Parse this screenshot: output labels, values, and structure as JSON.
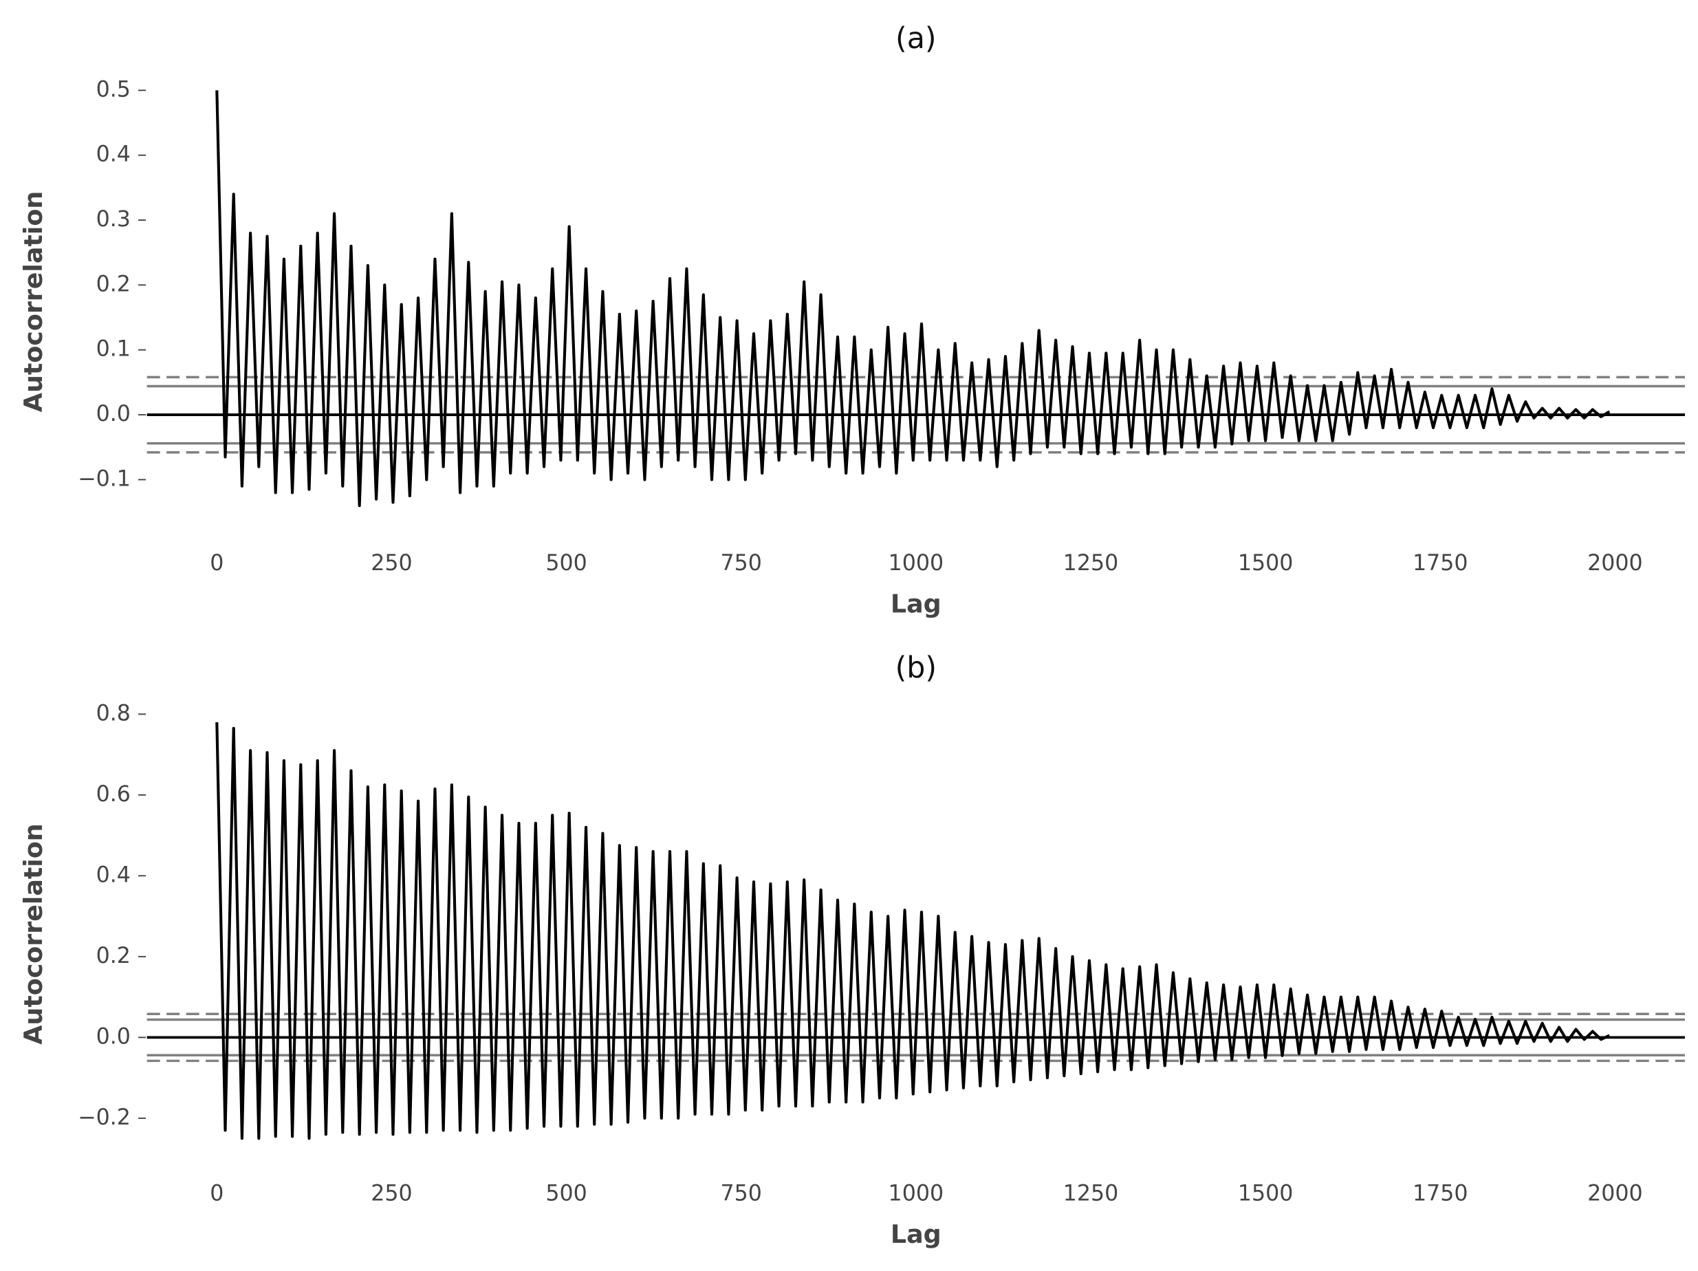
{
  "chart_data": [
    {
      "type": "line",
      "title": "(a)",
      "xlabel": "Lag",
      "ylabel": "Autocorrelation",
      "color": "#000000",
      "xlim": [
        -100,
        2100
      ],
      "ylim": [
        -0.15,
        0.52
      ],
      "xticks": [
        0,
        250,
        500,
        750,
        1000,
        1250,
        1500,
        1750,
        2000
      ],
      "yticks": [
        {
          "value": -0.1,
          "label": "−0.1"
        },
        {
          "value": 0,
          "label": "0.0"
        },
        0.1,
        0.2,
        0.3,
        0.4,
        0.5
      ],
      "reference_lines": [
        {
          "value": 0.058,
          "style": "dashed",
          "color": "#808080"
        },
        {
          "value": 0.044,
          "style": "solid",
          "color": "#808080"
        },
        {
          "value": 0,
          "style": "solid",
          "color": "#000000"
        },
        {
          "value": -0.044,
          "style": "solid",
          "color": "#808080"
        },
        {
          "value": -0.058,
          "style": "dashed",
          "color": "#808080"
        }
      ],
      "x": [
        0,
        12,
        24,
        36,
        48,
        60,
        72,
        84,
        96,
        108,
        120,
        132,
        144,
        156,
        168,
        180,
        192,
        204,
        216,
        228,
        240,
        252,
        264,
        276,
        288,
        300,
        312,
        324,
        336,
        348,
        360,
        372,
        384,
        396,
        408,
        420,
        432,
        444,
        456,
        468,
        480,
        492,
        504,
        516,
        528,
        540,
        552,
        564,
        576,
        588,
        600,
        612,
        624,
        636,
        648,
        660,
        672,
        684,
        696,
        708,
        720,
        732,
        744,
        756,
        768,
        780,
        792,
        804,
        816,
        828,
        840,
        852,
        864,
        876,
        888,
        900,
        912,
        924,
        936,
        948,
        960,
        972,
        984,
        996,
        1008,
        1020,
        1032,
        1044,
        1056,
        1068,
        1080,
        1092,
        1104,
        1116,
        1128,
        1140,
        1152,
        1164,
        1176,
        1188,
        1200,
        1212,
        1224,
        1236,
        1248,
        1260,
        1272,
        1284,
        1296,
        1308,
        1320,
        1332,
        1344,
        1356,
        1368,
        1380,
        1392,
        1404,
        1416,
        1428,
        1440,
        1452,
        1464,
        1476,
        1488,
        1500,
        1512,
        1524,
        1536,
        1548,
        1560,
        1572,
        1584,
        1596,
        1608,
        1620,
        1632,
        1644,
        1656,
        1668,
        1680,
        1692,
        1704,
        1716,
        1728,
        1740,
        1752,
        1764,
        1776,
        1788,
        1800,
        1812,
        1824,
        1836,
        1848,
        1860,
        1872,
        1884,
        1896,
        1908,
        1920,
        1932,
        1944,
        1956,
        1968,
        1980,
        1992
      ],
      "values": [
        0.5,
        -0.065,
        0.34,
        -0.11,
        0.28,
        -0.08,
        0.275,
        -0.12,
        0.24,
        -0.12,
        0.26,
        -0.115,
        0.28,
        -0.09,
        0.31,
        -0.11,
        0.26,
        -0.14,
        0.23,
        -0.13,
        0.2,
        -0.135,
        0.17,
        -0.125,
        0.18,
        -0.1,
        0.24,
        -0.08,
        0.31,
        -0.12,
        0.235,
        -0.11,
        0.19,
        -0.11,
        0.205,
        -0.09,
        0.2,
        -0.09,
        0.18,
        -0.08,
        0.225,
        -0.07,
        0.29,
        -0.07,
        0.225,
        -0.09,
        0.19,
        -0.1,
        0.155,
        -0.09,
        0.16,
        -0.1,
        0.175,
        -0.08,
        0.21,
        -0.07,
        0.225,
        -0.08,
        0.185,
        -0.1,
        0.15,
        -0.1,
        0.145,
        -0.1,
        0.125,
        -0.09,
        0.145,
        -0.07,
        0.155,
        -0.06,
        0.205,
        -0.07,
        0.185,
        -0.08,
        0.12,
        -0.09,
        0.12,
        -0.09,
        0.1,
        -0.08,
        0.135,
        -0.09,
        0.125,
        -0.07,
        0.14,
        -0.07,
        0.1,
        -0.07,
        0.11,
        -0.07,
        0.08,
        -0.07,
        0.085,
        -0.08,
        0.09,
        -0.07,
        0.11,
        -0.06,
        0.13,
        -0.05,
        0.115,
        -0.05,
        0.105,
        -0.06,
        0.095,
        -0.06,
        0.095,
        -0.06,
        0.095,
        -0.05,
        0.115,
        -0.06,
        0.1,
        -0.06,
        0.1,
        -0.05,
        0.085,
        -0.05,
        0.06,
        -0.05,
        0.075,
        -0.045,
        0.08,
        -0.04,
        0.075,
        -0.04,
        0.08,
        -0.035,
        0.06,
        -0.04,
        0.045,
        -0.04,
        0.045,
        -0.04,
        0.05,
        -0.03,
        0.065,
        -0.02,
        0.06,
        -0.02,
        0.07,
        -0.02,
        0.05,
        -0.02,
        0.035,
        -0.02,
        0.03,
        -0.02,
        0.03,
        -0.02,
        0.03,
        -0.02,
        0.04,
        -0.015,
        0.03,
        -0.01,
        0.02,
        -0.005,
        0.01,
        -0.005,
        0.01,
        -0.005,
        0.008,
        -0.005,
        0.008,
        -0.003,
        0.005
      ]
    },
    {
      "type": "line",
      "title": "(b)",
      "xlabel": "Lag",
      "ylabel": "Autocorrelation",
      "color": "#000000",
      "xlim": [
        -100,
        2100
      ],
      "ylim": [
        -0.26,
        0.82
      ],
      "xticks": [
        0,
        250,
        500,
        750,
        1000,
        1250,
        1500,
        1750,
        2000
      ],
      "yticks": [
        {
          "value": -0.2,
          "label": "−0.2"
        },
        {
          "value": 0,
          "label": "0.0"
        },
        0.2,
        0.4,
        0.6,
        0.8
      ],
      "reference_lines": [
        {
          "value": 0.058,
          "style": "dashed",
          "color": "#808080"
        },
        {
          "value": 0.044,
          "style": "solid",
          "color": "#808080"
        },
        {
          "value": 0,
          "style": "solid",
          "color": "#000000"
        },
        {
          "value": -0.044,
          "style": "solid",
          "color": "#808080"
        },
        {
          "value": -0.058,
          "style": "dashed",
          "color": "#808080"
        }
      ],
      "x": [
        0,
        12,
        24,
        36,
        48,
        60,
        72,
        84,
        96,
        108,
        120,
        132,
        144,
        156,
        168,
        180,
        192,
        204,
        216,
        228,
        240,
        252,
        264,
        276,
        288,
        300,
        312,
        324,
        336,
        348,
        360,
        372,
        384,
        396,
        408,
        420,
        432,
        444,
        456,
        468,
        480,
        492,
        504,
        516,
        528,
        540,
        552,
        564,
        576,
        588,
        600,
        612,
        624,
        636,
        648,
        660,
        672,
        684,
        696,
        708,
        720,
        732,
        744,
        756,
        768,
        780,
        792,
        804,
        816,
        828,
        840,
        852,
        864,
        876,
        888,
        900,
        912,
        924,
        936,
        948,
        960,
        972,
        984,
        996,
        1008,
        1020,
        1032,
        1044,
        1056,
        1068,
        1080,
        1092,
        1104,
        1116,
        1128,
        1140,
        1152,
        1164,
        1176,
        1188,
        1200,
        1212,
        1224,
        1236,
        1248,
        1260,
        1272,
        1284,
        1296,
        1308,
        1320,
        1332,
        1344,
        1356,
        1368,
        1380,
        1392,
        1404,
        1416,
        1428,
        1440,
        1452,
        1464,
        1476,
        1488,
        1500,
        1512,
        1524,
        1536,
        1548,
        1560,
        1572,
        1584,
        1596,
        1608,
        1620,
        1632,
        1644,
        1656,
        1668,
        1680,
        1692,
        1704,
        1716,
        1728,
        1740,
        1752,
        1764,
        1776,
        1788,
        1800,
        1812,
        1824,
        1836,
        1848,
        1860,
        1872,
        1884,
        1896,
        1908,
        1920,
        1932,
        1944,
        1956,
        1968,
        1980,
        1992
      ],
      "values": [
        0.78,
        -0.23,
        0.765,
        -0.25,
        0.71,
        -0.25,
        0.705,
        -0.245,
        0.685,
        -0.245,
        0.675,
        -0.25,
        0.685,
        -0.24,
        0.71,
        -0.235,
        0.66,
        -0.24,
        0.62,
        -0.235,
        0.625,
        -0.24,
        0.61,
        -0.235,
        0.585,
        -0.235,
        0.615,
        -0.23,
        0.625,
        -0.23,
        0.595,
        -0.235,
        0.57,
        -0.23,
        0.55,
        -0.23,
        0.53,
        -0.225,
        0.53,
        -0.22,
        0.55,
        -0.22,
        0.555,
        -0.22,
        0.52,
        -0.215,
        0.505,
        -0.215,
        0.475,
        -0.21,
        0.47,
        -0.2,
        0.46,
        -0.2,
        0.46,
        -0.2,
        0.46,
        -0.19,
        0.43,
        -0.19,
        0.425,
        -0.19,
        0.395,
        -0.18,
        0.385,
        -0.18,
        0.38,
        -0.17,
        0.385,
        -0.17,
        0.39,
        -0.17,
        0.365,
        -0.16,
        0.34,
        -0.16,
        0.33,
        -0.16,
        0.31,
        -0.15,
        0.3,
        -0.15,
        0.315,
        -0.14,
        0.31,
        -0.135,
        0.3,
        -0.13,
        0.26,
        -0.125,
        0.25,
        -0.12,
        0.235,
        -0.12,
        0.23,
        -0.11,
        0.24,
        -0.105,
        0.245,
        -0.1,
        0.22,
        -0.095,
        0.2,
        -0.09,
        0.19,
        -0.085,
        0.18,
        -0.08,
        0.17,
        -0.08,
        0.175,
        -0.075,
        0.18,
        -0.07,
        0.16,
        -0.065,
        0.145,
        -0.06,
        0.135,
        -0.055,
        0.13,
        -0.055,
        0.125,
        -0.05,
        0.13,
        -0.05,
        0.13,
        -0.045,
        0.12,
        -0.04,
        0.105,
        -0.04,
        0.1,
        -0.035,
        0.1,
        -0.035,
        0.1,
        -0.03,
        0.1,
        -0.03,
        0.09,
        -0.03,
        0.075,
        -0.025,
        0.07,
        -0.025,
        0.065,
        -0.02,
        0.05,
        -0.02,
        0.045,
        -0.02,
        0.05,
        -0.015,
        0.04,
        -0.015,
        0.04,
        -0.01,
        0.035,
        -0.01,
        0.025,
        -0.01,
        0.02,
        -0.005,
        0.015,
        -0.005,
        0.005
      ]
    }
  ]
}
